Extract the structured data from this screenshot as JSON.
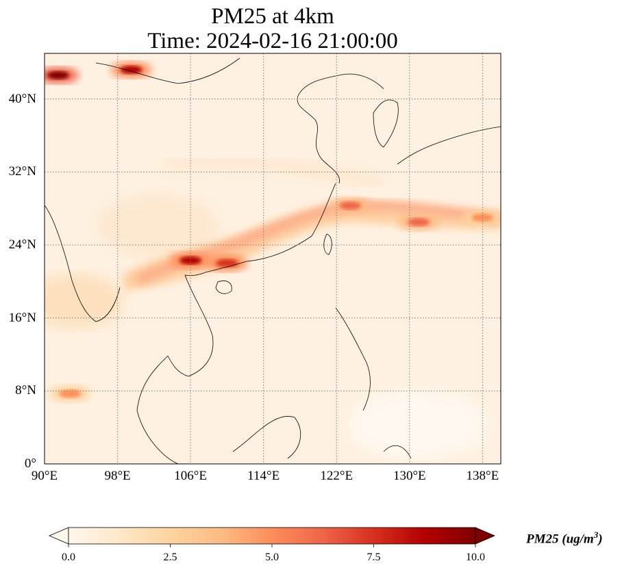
{
  "title": {
    "line1": "PM25 at 4km",
    "line2": "Time: 2024-02-16 21:00:00"
  },
  "map": {
    "projection": "PlateCarree",
    "lon_range": [
      90,
      140
    ],
    "lat_range": [
      0,
      45
    ],
    "lon_ticks": [
      {
        "value": 90,
        "label": "90°E"
      },
      {
        "value": 98,
        "label": "98°E"
      },
      {
        "value": 106,
        "label": "106°E"
      },
      {
        "value": 114,
        "label": "114°E"
      },
      {
        "value": 122,
        "label": "122°E"
      },
      {
        "value": 130,
        "label": "130°E"
      },
      {
        "value": 138,
        "label": "138°E"
      }
    ],
    "lat_ticks": [
      {
        "value": 0,
        "label": "0°"
      },
      {
        "value": 8,
        "label": "8°N"
      },
      {
        "value": 16,
        "label": "16°N"
      },
      {
        "value": 24,
        "label": "24°N"
      },
      {
        "value": 32,
        "label": "32°N"
      },
      {
        "value": 40,
        "label": "40°N"
      }
    ],
    "gridlines": true,
    "plumes": [
      {
        "name": "north-plume-west",
        "lon": 91.5,
        "lat": 42.6,
        "value": 9.5
      },
      {
        "name": "north-plume-east",
        "lon": 99.5,
        "lat": 43.2,
        "value": 9.0
      },
      {
        "name": "band-south-china",
        "lon": 106.0,
        "lat": 22.3,
        "value": 8.5
      },
      {
        "name": "band-guangdong",
        "lon": 110.0,
        "lat": 22.0,
        "value": 7.5
      },
      {
        "name": "band-east-china-sea",
        "lon": 123.5,
        "lat": 28.3,
        "value": 6.5
      },
      {
        "name": "band-pacific",
        "lon": 131.0,
        "lat": 26.5,
        "value": 6.0
      },
      {
        "name": "band-far-east",
        "lon": 138.0,
        "lat": 27.0,
        "value": 5.0
      },
      {
        "name": "myanmar-spot",
        "lon": 92.8,
        "lat": 7.7,
        "value": 4.5
      }
    ]
  },
  "colorbar": {
    "label_text": "PM25 (ug/m",
    "label_sup": "3",
    "label_close": ")",
    "min": 0.0,
    "max": 10.0,
    "extend": "both",
    "cmap": "OrRd",
    "stops": [
      "#fff7ec",
      "#fee8c8",
      "#fdd49e",
      "#fdbb84",
      "#fc8d59",
      "#ef6548",
      "#d7301f",
      "#b30000",
      "#7f0000"
    ],
    "ticks": [
      "0.0",
      "2.5",
      "5.0",
      "7.5",
      "10.0"
    ]
  }
}
